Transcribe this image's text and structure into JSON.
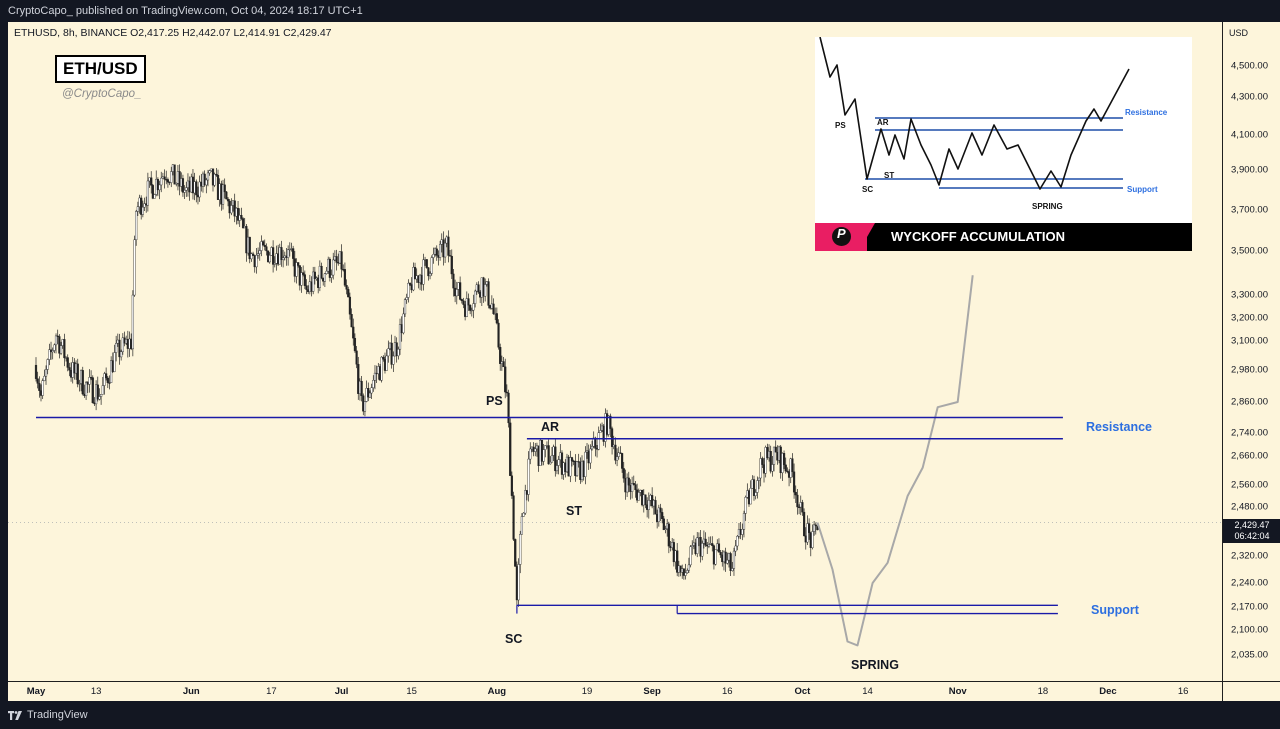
{
  "header": {
    "text": "CryptoCapo_ published on TradingView.com, Oct 04, 2024 18:17 UTC+1"
  },
  "symbol_info": "ETHUSD, 8h, BINANCE  O2,417.25  H2,442.07  L2,414.91  C2,429.47",
  "title_box": "ETH/USD",
  "handle": "@CryptoCapo_",
  "price_axis": {
    "currency": "USD",
    "ticks": [
      "4,500.00",
      "4,300.00",
      "4,100.00",
      "3,900.00",
      "3,700.00",
      "3,500.00",
      "3,300.00",
      "3,200.00",
      "3,100.00",
      "2,980.00",
      "2,860.00",
      "2,740.00",
      "2,660.00",
      "2,560.00",
      "2,480.00",
      "2,320.00",
      "2,240.00",
      "2,170.00",
      "2,100.00",
      "2,035.00"
    ],
    "last_price": "2,429.47",
    "countdown": "06:42:04"
  },
  "time_axis": {
    "labels": [
      {
        "text": "May",
        "bold": true
      },
      {
        "text": "13",
        "bold": false
      },
      {
        "text": "Jun",
        "bold": true
      },
      {
        "text": "17",
        "bold": false
      },
      {
        "text": "Jul",
        "bold": true
      },
      {
        "text": "15",
        "bold": false
      },
      {
        "text": "Aug",
        "bold": true
      },
      {
        "text": "19",
        "bold": false
      },
      {
        "text": "Sep",
        "bold": true
      },
      {
        "text": "16",
        "bold": false
      },
      {
        "text": "Oct",
        "bold": true
      },
      {
        "text": "14",
        "bold": false
      },
      {
        "text": "Nov",
        "bold": true
      },
      {
        "text": "18",
        "bold": false
      },
      {
        "text": "Dec",
        "bold": true
      },
      {
        "text": "16",
        "bold": false
      }
    ]
  },
  "annotations": {
    "ps": "PS",
    "ar": "AR",
    "st": "ST",
    "sc": "SC",
    "spring": "SPRING",
    "resistance": "Resistance",
    "support": "Support"
  },
  "inset": {
    "banner": "WYCKOFF ACCUMULATION",
    "logo_letter": "P",
    "labels": {
      "ps": "PS",
      "ar": "AR",
      "st": "ST",
      "sc": "SC",
      "spring": "SPRING",
      "resistance": "Resistance",
      "support": "Support"
    }
  },
  "footer": {
    "brand": "TradingView"
  },
  "colors": {
    "line": "#1a1aa8",
    "label_blue": "#2d6fe0",
    "projection": "#a8a8a8",
    "background": "#fdf5db",
    "dark": "#131722"
  },
  "chart_data": {
    "type": "candlestick",
    "symbol": "ETHUSD",
    "interval": "8h",
    "exchange": "BINANCE",
    "ohlc_last": {
      "open": 2417.25,
      "high": 2442.07,
      "low": 2414.91,
      "close": 2429.47
    },
    "price_path_approx": [
      {
        "date": "2024-05-01",
        "price": 3000
      },
      {
        "date": "2024-05-02",
        "price": 2880
      },
      {
        "date": "2024-05-05",
        "price": 3130
      },
      {
        "date": "2024-05-08",
        "price": 2980
      },
      {
        "date": "2024-05-11",
        "price": 2920
      },
      {
        "date": "2024-05-14",
        "price": 2890
      },
      {
        "date": "2024-05-17",
        "price": 3050
      },
      {
        "date": "2024-05-20",
        "price": 3100
      },
      {
        "date": "2024-05-21",
        "price": 3700
      },
      {
        "date": "2024-05-23",
        "price": 3780
      },
      {
        "date": "2024-05-27",
        "price": 3900
      },
      {
        "date": "2024-05-31",
        "price": 3790
      },
      {
        "date": "2024-06-05",
        "price": 3850
      },
      {
        "date": "2024-06-10",
        "price": 3670
      },
      {
        "date": "2024-06-13",
        "price": 3480
      },
      {
        "date": "2024-06-17",
        "price": 3500
      },
      {
        "date": "2024-06-20",
        "price": 3500
      },
      {
        "date": "2024-06-24",
        "price": 3320
      },
      {
        "date": "2024-06-28",
        "price": 3420
      },
      {
        "date": "2024-07-01",
        "price": 3440
      },
      {
        "date": "2024-07-05",
        "price": 2840
      },
      {
        "date": "2024-07-08",
        "price": 2970
      },
      {
        "date": "2024-07-12",
        "price": 3080
      },
      {
        "date": "2024-07-15",
        "price": 3360
      },
      {
        "date": "2024-07-22",
        "price": 3520
      },
      {
        "date": "2024-07-24",
        "price": 3320
      },
      {
        "date": "2024-07-26",
        "price": 3250
      },
      {
        "date": "2024-07-29",
        "price": 3360
      },
      {
        "date": "2024-07-31",
        "price": 3260
      },
      {
        "date": "2024-08-03",
        "price": 2870
      },
      {
        "date": "2024-08-05",
        "price": 2170
      },
      {
        "date": "2024-08-06",
        "price": 2460
      },
      {
        "date": "2024-08-08",
        "price": 2680
      },
      {
        "date": "2024-08-13",
        "price": 2650
      },
      {
        "date": "2024-08-17",
        "price": 2600
      },
      {
        "date": "2024-08-19",
        "price": 2640
      },
      {
        "date": "2024-08-23",
        "price": 2780
      },
      {
        "date": "2024-08-27",
        "price": 2560
      },
      {
        "date": "2024-08-31",
        "price": 2510
      },
      {
        "date": "2024-09-04",
        "price": 2400
      },
      {
        "date": "2024-09-07",
        "price": 2250
      },
      {
        "date": "2024-09-10",
        "price": 2360
      },
      {
        "date": "2024-09-14",
        "price": 2330
      },
      {
        "date": "2024-09-17",
        "price": 2280
      },
      {
        "date": "2024-09-20",
        "price": 2500
      },
      {
        "date": "2024-09-23",
        "price": 2640
      },
      {
        "date": "2024-09-26",
        "price": 2660
      },
      {
        "date": "2024-09-29",
        "price": 2600
      },
      {
        "date": "2024-10-01",
        "price": 2430
      },
      {
        "date": "2024-10-03",
        "price": 2360
      },
      {
        "date": "2024-10-04",
        "price": 2429
      }
    ],
    "projection_path_approx": [
      {
        "date": "2024-10-04",
        "price": 2429
      },
      {
        "date": "2024-10-07",
        "price": 2280
      },
      {
        "date": "2024-10-10",
        "price": 2070
      },
      {
        "date": "2024-10-12",
        "price": 2060
      },
      {
        "date": "2024-10-15",
        "price": 2240
      },
      {
        "date": "2024-10-18",
        "price": 2300
      },
      {
        "date": "2024-10-22",
        "price": 2520
      },
      {
        "date": "2024-10-25",
        "price": 2620
      },
      {
        "date": "2024-10-28",
        "price": 2840
      },
      {
        "date": "2024-11-01",
        "price": 2860
      },
      {
        "date": "2024-11-04",
        "price": 3390
      }
    ],
    "levels": [
      {
        "name": "Resistance",
        "price": 2800
      },
      {
        "name": "Resistance",
        "price": 2720
      },
      {
        "name": "Support",
        "price": 2175
      },
      {
        "name": "Support",
        "price": 2150
      }
    ],
    "events": [
      {
        "label": "PS",
        "date": "2024-08-03",
        "price": 2860
      },
      {
        "label": "SC",
        "date": "2024-08-05",
        "price": 2150
      },
      {
        "label": "AR",
        "date": "2024-08-08",
        "price": 2720
      },
      {
        "label": "ST",
        "date": "2024-08-15",
        "price": 2500
      },
      {
        "label": "SPRING",
        "date": "2024-10-11",
        "price": 2040
      }
    ],
    "ylim": [
      2000,
      4600
    ],
    "xlim": [
      "2024-05-01",
      "2024-12-20"
    ]
  }
}
